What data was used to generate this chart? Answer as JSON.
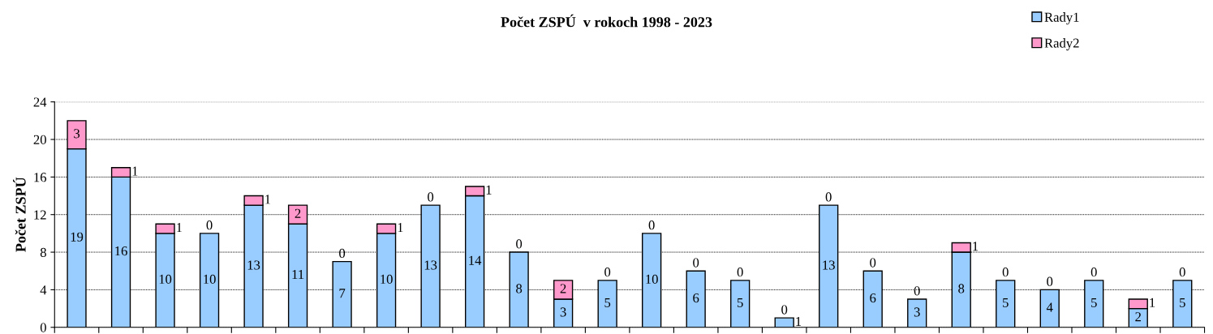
{
  "chart_data": {
    "type": "bar",
    "title": "Počet ZSPÚ  v rokoch 1998 - 2023",
    "ylabel": "Počet ZSPÚ",
    "categories": [
      null,
      null,
      null,
      null,
      null,
      null,
      null,
      null,
      null,
      null,
      null,
      null,
      null,
      null,
      null,
      null,
      null,
      null,
      null,
      null,
      null,
      null,
      null,
      null,
      null,
      null
    ],
    "series": [
      {
        "name": "Rady1",
        "color": "#99ccff",
        "values": [
          19,
          16,
          10,
          10,
          13,
          11,
          7,
          10,
          13,
          14,
          8,
          3,
          5,
          10,
          6,
          5,
          1,
          13,
          6,
          3,
          8,
          5,
          4,
          5,
          2,
          5
        ]
      },
      {
        "name": "Rady2",
        "color": "#ff99cc",
        "values": [
          3,
          1,
          1,
          0,
          1,
          2,
          0,
          1,
          0,
          1,
          0,
          2,
          0,
          0,
          0,
          0,
          0,
          0,
          0,
          0,
          1,
          0,
          0,
          0,
          1,
          0
        ]
      }
    ],
    "stacked": true,
    "ylim": [
      0,
      24
    ],
    "yticks": [
      0,
      4,
      8,
      12,
      16,
      20,
      24
    ],
    "grid": "y",
    "legend": "top right",
    "data_labels": true
  }
}
